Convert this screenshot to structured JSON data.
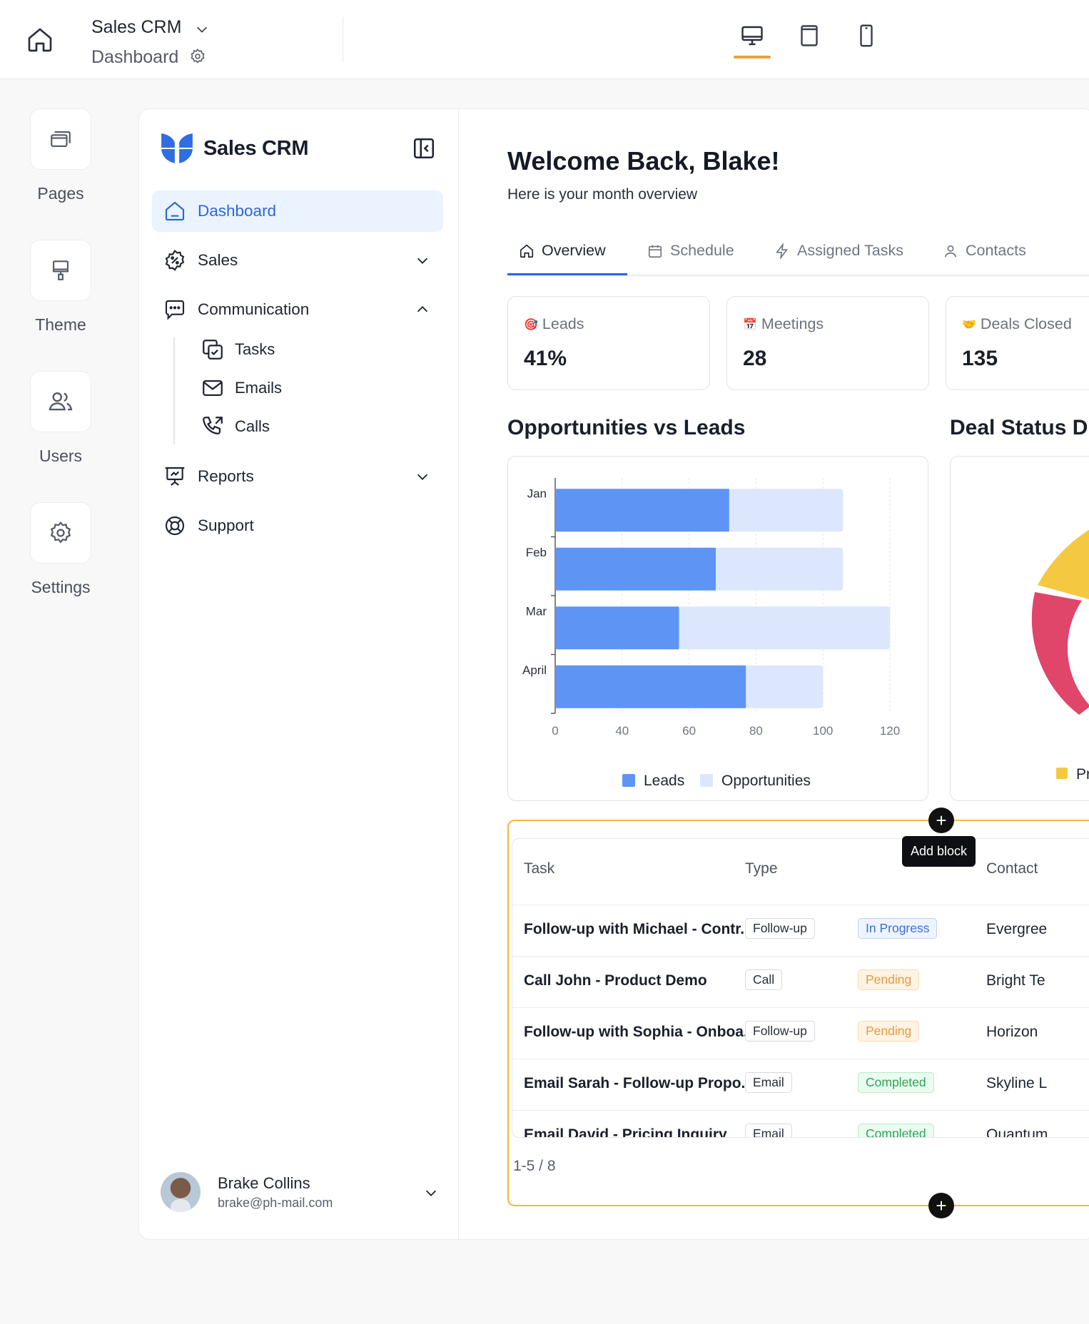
{
  "topbar": {
    "app_title": "Sales CRM",
    "page_name": "Dashboard",
    "devices": [
      "desktop-icon",
      "tablet-icon",
      "mobile-icon"
    ],
    "active_device": "desktop"
  },
  "rail": {
    "items": [
      {
        "label": "Pages",
        "icon": "pages-icon"
      },
      {
        "label": "Theme",
        "icon": "paint-roller-icon"
      },
      {
        "label": "Users",
        "icon": "users-icon"
      },
      {
        "label": "Settings",
        "icon": "gear-icon"
      }
    ]
  },
  "sidebar": {
    "brand": "Sales CRM",
    "items": [
      {
        "label": "Dashboard",
        "icon": "home-icon"
      },
      {
        "label": "Sales",
        "icon": "badge-percent-icon"
      },
      {
        "label": "Communication",
        "icon": "chat-icon"
      },
      {
        "label": "Reports",
        "icon": "presentation-icon"
      },
      {
        "label": "Support",
        "icon": "lifebuoy-icon"
      }
    ],
    "sub_items": [
      {
        "label": "Tasks",
        "icon": "tasks-icon"
      },
      {
        "label": "Emails",
        "icon": "mail-icon"
      },
      {
        "label": "Calls",
        "icon": "phone-icon"
      }
    ],
    "user": {
      "name": "Brake Collins",
      "email": "brake@ph-mail.com"
    }
  },
  "main": {
    "welcome": "Welcome Back, Blake!",
    "subtitle": "Here is your month overview",
    "tabs": [
      {
        "label": "Overview",
        "icon": "home-icon"
      },
      {
        "label": "Schedule",
        "icon": "calendar-icon"
      },
      {
        "label": "Assigned Tasks",
        "icon": "bolt-icon"
      },
      {
        "label": "Contacts",
        "icon": "user-icon"
      }
    ],
    "stats": [
      {
        "label": "Leads",
        "value": "41%",
        "emoji": "🎯"
      },
      {
        "label": "Meetings",
        "value": "28",
        "emoji": "📅"
      },
      {
        "label": "Deals Closed",
        "value": "135",
        "emoji": "🤝"
      }
    ],
    "chart_title": "Opportunities vs Leads",
    "donut_title": "Deal Status D",
    "donut_legend": "Pr"
  },
  "chart_data": {
    "type": "bar",
    "orientation": "horizontal",
    "stacked": true,
    "categories": [
      "Jan",
      "Feb",
      "Mar",
      "April"
    ],
    "series": [
      {
        "name": "Leads",
        "values": [
          72,
          68,
          57,
          77
        ],
        "color": "#5e95f5"
      },
      {
        "name": "Opportunities",
        "values": [
          34,
          38,
          63,
          23
        ],
        "color": "#dce7fd"
      }
    ],
    "xticks": [
      "0",
      "40",
      "60",
      "80",
      "100",
      "120"
    ],
    "xlim": [
      0,
      120
    ],
    "grid": true,
    "legend": "bottom"
  },
  "table": {
    "headers": [
      "Task",
      "Type",
      "",
      "Contact"
    ],
    "rows": [
      {
        "task": "Follow-up with Michael - Contr...",
        "type": "Follow-up",
        "status": "In Progress",
        "status_kind": "progress",
        "contact": "Evergree"
      },
      {
        "task": "Call John - Product Demo",
        "type": "Call",
        "status": "Pending",
        "status_kind": "pending",
        "contact": "Bright Te"
      },
      {
        "task": "Follow-up with Sophia - Onboa...",
        "type": "Follow-up",
        "status": "Pending",
        "status_kind": "pending",
        "contact": "Horizon"
      },
      {
        "task": "Email Sarah - Follow-up Propo...",
        "type": "Email",
        "status": "Completed",
        "status_kind": "completed",
        "contact": "Skyline L"
      },
      {
        "task": "Email David - Pricing Inquiry",
        "type": "Email",
        "status": "Completed",
        "status_kind": "completed",
        "contact": "Quantum"
      }
    ],
    "pager": "1-5 / 8",
    "tooltip": "Add block"
  },
  "colors": {
    "accent": "#2b68d8",
    "highlight": "#f0b93a",
    "donut_yellow": "#f5c842",
    "donut_red": "#e0456a"
  }
}
